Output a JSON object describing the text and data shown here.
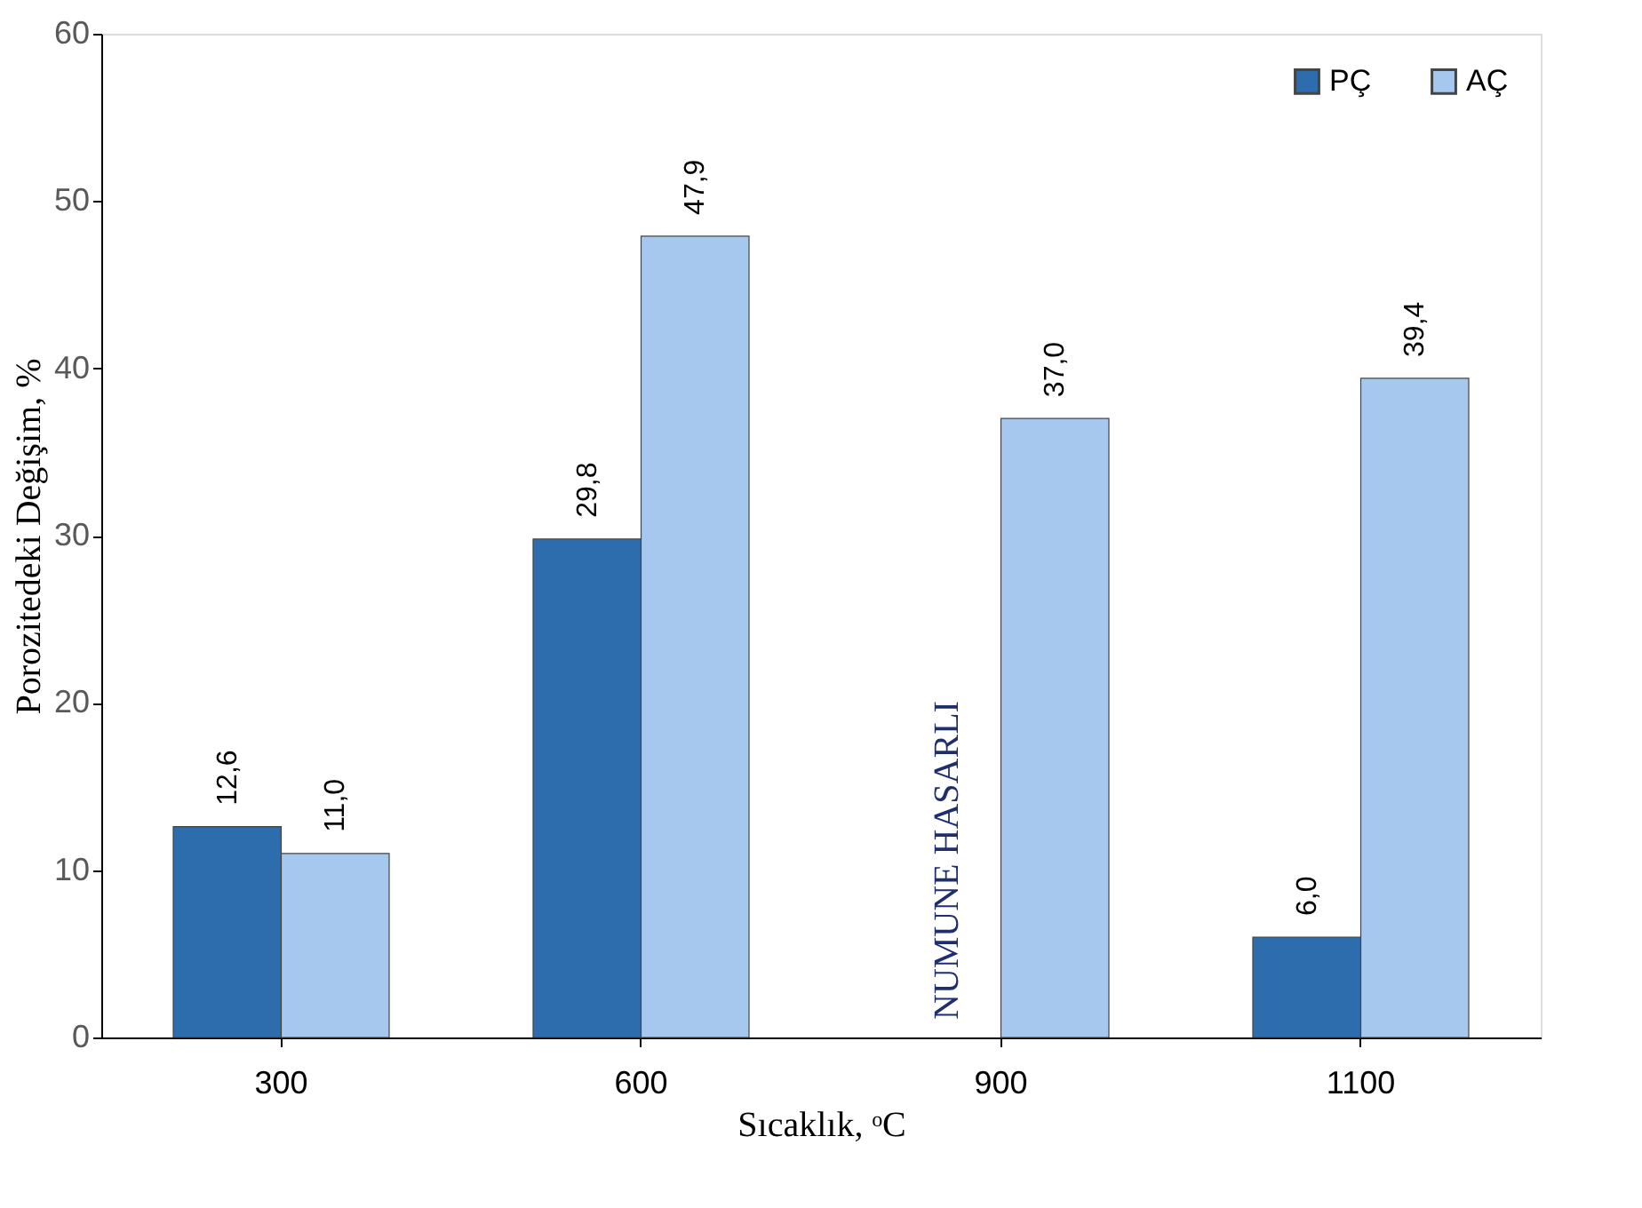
{
  "chart_data": {
    "type": "bar",
    "xlabel": "Sıcaklık, ᵒC",
    "ylabel": "Porozitedeki Değişim, %",
    "categories": [
      "300",
      "600",
      "900",
      "1100"
    ],
    "series": [
      {
        "name": "PÇ",
        "color": "#2e6dad",
        "values": [
          12.6,
          29.8,
          null,
          6.0
        ],
        "value_labels": [
          "12,6",
          "29,8",
          null,
          "6,0"
        ]
      },
      {
        "name": "AÇ",
        "color": "#a6c8ee",
        "values": [
          11.0,
          47.9,
          37.0,
          39.4
        ],
        "value_labels": [
          "11,0",
          "47,9",
          "37,0",
          "39,4"
        ]
      }
    ],
    "ylim": [
      0,
      60
    ],
    "yticks": [
      0,
      10,
      20,
      30,
      40,
      50,
      60
    ],
    "grid": false,
    "legend": "top right",
    "annotations": [
      {
        "text": "NUMUNE HASARLI",
        "x": "900"
      }
    ]
  }
}
